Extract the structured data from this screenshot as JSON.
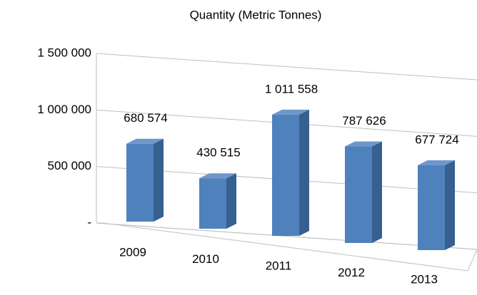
{
  "chart_data": {
    "type": "bar",
    "title": "Quantity (Metric Tonnes)",
    "categories": [
      "2009",
      "2010",
      "2011",
      "2012",
      "2013"
    ],
    "values": [
      680574,
      430515,
      1011558,
      787626,
      677724
    ],
    "value_labels": [
      "680 574",
      "430 515",
      "1 011 558",
      "787 626",
      "677 724"
    ],
    "color": "#4f81bd",
    "ylim": [
      0,
      1500000
    ],
    "yticks": [
      {
        "value": 0,
        "label": "-"
      },
      {
        "value": 500000,
        "label": "500 000"
      },
      {
        "value": 1000000,
        "label": "1 000 000"
      },
      {
        "value": 1500000,
        "label": "1 500 000"
      }
    ],
    "grid": true
  }
}
